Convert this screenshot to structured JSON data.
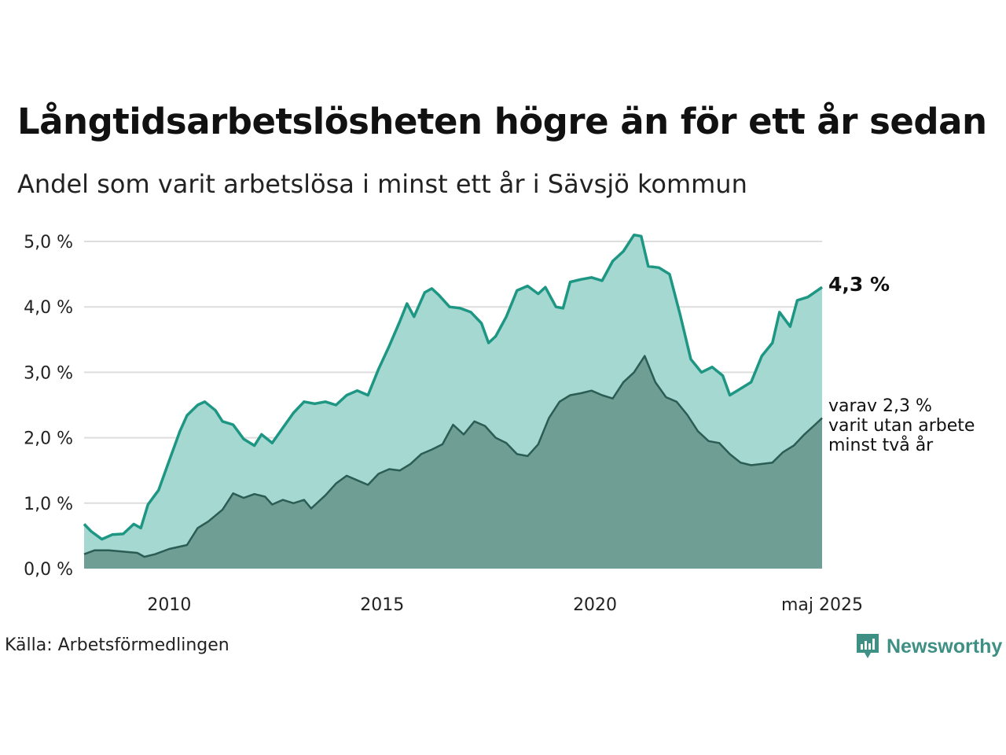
{
  "title": "Långtidsarbetslösheten högre än för ett år sedan",
  "subtitle": "Andel som varit arbetslösa i minst ett år i Sävsjö kommun",
  "source": "Källa: Arbetsförmedlingen",
  "brand": "Newsworthy",
  "annotation": {
    "main": "4,3 %",
    "sub": [
      "varav 2,3 %",
      "varit utan arbete",
      "minst två år"
    ]
  },
  "colors": {
    "upper_line": "#1d9683",
    "upper_fill": "#a5d8d1",
    "lower_line": "#2b5d55",
    "lower_fill": "#6f9e95",
    "grid": "#dddddd",
    "brand": "#3e8f84"
  },
  "chart_data": {
    "type": "area",
    "x_range": [
      "2008-01",
      "2025-05"
    ],
    "ylim": [
      0,
      5
    ],
    "y_ticks": [
      "0,0 %",
      "1,0 %",
      "2,0 %",
      "3,0 %",
      "4,0 %",
      "5,0 %"
    ],
    "x_ticks": [
      "2010",
      "2015",
      "2020",
      "maj 2025"
    ],
    "grid": true,
    "series": [
      {
        "points": [
          [
            "2008-01",
            0.68
          ],
          [
            "2008-03",
            0.57
          ],
          [
            "2008-06",
            0.45
          ],
          [
            "2008-09",
            0.52
          ],
          [
            "2008-12",
            0.53
          ],
          [
            "2009-03",
            0.68
          ],
          [
            "2009-05",
            0.62
          ],
          [
            "2009-07",
            0.98
          ],
          [
            "2009-10",
            1.2
          ],
          [
            "2010-01",
            1.65
          ],
          [
            "2010-04",
            2.1
          ],
          [
            "2010-06",
            2.34
          ],
          [
            "2010-09",
            2.5
          ],
          [
            "2010-11",
            2.55
          ],
          [
            "2011-02",
            2.42
          ],
          [
            "2011-04",
            2.25
          ],
          [
            "2011-07",
            2.2
          ],
          [
            "2011-10",
            1.98
          ],
          [
            "2012-01",
            1.88
          ],
          [
            "2012-03",
            2.05
          ],
          [
            "2012-06",
            1.92
          ],
          [
            "2012-09",
            2.15
          ],
          [
            "2012-12",
            2.38
          ],
          [
            "2013-03",
            2.55
          ],
          [
            "2013-06",
            2.52
          ],
          [
            "2013-09",
            2.55
          ],
          [
            "2013-12",
            2.5
          ],
          [
            "2014-03",
            2.65
          ],
          [
            "2014-06",
            2.72
          ],
          [
            "2014-09",
            2.65
          ],
          [
            "2014-12",
            3.05
          ],
          [
            "2015-03",
            3.4
          ],
          [
            "2015-06",
            3.78
          ],
          [
            "2015-08",
            4.05
          ],
          [
            "2015-10",
            3.85
          ],
          [
            "2016-01",
            4.22
          ],
          [
            "2016-03",
            4.28
          ],
          [
            "2016-05",
            4.18
          ],
          [
            "2016-08",
            4.0
          ],
          [
            "2016-11",
            3.98
          ],
          [
            "2017-02",
            3.92
          ],
          [
            "2017-05",
            3.75
          ],
          [
            "2017-07",
            3.45
          ],
          [
            "2017-09",
            3.55
          ],
          [
            "2017-12",
            3.85
          ],
          [
            "2018-03",
            4.25
          ],
          [
            "2018-06",
            4.32
          ],
          [
            "2018-09",
            4.2
          ],
          [
            "2018-11",
            4.3
          ],
          [
            "2019-02",
            4.0
          ],
          [
            "2019-04",
            3.98
          ],
          [
            "2019-06",
            4.38
          ],
          [
            "2019-09",
            4.42
          ],
          [
            "2019-12",
            4.45
          ],
          [
            "2020-03",
            4.4
          ],
          [
            "2020-06",
            4.7
          ],
          [
            "2020-09",
            4.85
          ],
          [
            "2020-12",
            5.1
          ],
          [
            "2021-02",
            5.08
          ],
          [
            "2021-04",
            4.62
          ],
          [
            "2021-07",
            4.6
          ],
          [
            "2021-10",
            4.5
          ],
          [
            "2022-01",
            3.88
          ],
          [
            "2022-04",
            3.2
          ],
          [
            "2022-07",
            3.0
          ],
          [
            "2022-10",
            3.08
          ],
          [
            "2023-01",
            2.95
          ],
          [
            "2023-03",
            2.65
          ],
          [
            "2023-06",
            2.75
          ],
          [
            "2023-09",
            2.85
          ],
          [
            "2023-12",
            3.25
          ],
          [
            "2024-03",
            3.45
          ],
          [
            "2024-05",
            3.92
          ],
          [
            "2024-08",
            3.7
          ],
          [
            "2024-10",
            4.1
          ],
          [
            "2025-01",
            4.15
          ],
          [
            "2025-05",
            4.3
          ]
        ]
      },
      {
        "points": [
          [
            "2008-01",
            0.22
          ],
          [
            "2008-04",
            0.28
          ],
          [
            "2008-08",
            0.28
          ],
          [
            "2008-12",
            0.26
          ],
          [
            "2009-04",
            0.24
          ],
          [
            "2009-06",
            0.18
          ],
          [
            "2009-09",
            0.22
          ],
          [
            "2010-01",
            0.3
          ],
          [
            "2010-06",
            0.36
          ],
          [
            "2010-09",
            0.62
          ],
          [
            "2010-12",
            0.72
          ],
          [
            "2011-04",
            0.9
          ],
          [
            "2011-07",
            1.15
          ],
          [
            "2011-10",
            1.08
          ],
          [
            "2012-01",
            1.14
          ],
          [
            "2012-04",
            1.1
          ],
          [
            "2012-06",
            0.98
          ],
          [
            "2012-09",
            1.05
          ],
          [
            "2012-12",
            1.0
          ],
          [
            "2013-03",
            1.05
          ],
          [
            "2013-05",
            0.92
          ],
          [
            "2013-09",
            1.12
          ],
          [
            "2013-12",
            1.3
          ],
          [
            "2014-03",
            1.42
          ],
          [
            "2014-06",
            1.35
          ],
          [
            "2014-09",
            1.28
          ],
          [
            "2014-12",
            1.45
          ],
          [
            "2015-03",
            1.52
          ],
          [
            "2015-06",
            1.5
          ],
          [
            "2015-09",
            1.6
          ],
          [
            "2015-12",
            1.75
          ],
          [
            "2016-03",
            1.82
          ],
          [
            "2016-06",
            1.9
          ],
          [
            "2016-09",
            2.2
          ],
          [
            "2016-12",
            2.05
          ],
          [
            "2017-03",
            2.25
          ],
          [
            "2017-06",
            2.18
          ],
          [
            "2017-09",
            2.0
          ],
          [
            "2017-12",
            1.92
          ],
          [
            "2018-03",
            1.75
          ],
          [
            "2018-06",
            1.72
          ],
          [
            "2018-09",
            1.9
          ],
          [
            "2018-12",
            2.3
          ],
          [
            "2019-03",
            2.55
          ],
          [
            "2019-06",
            2.65
          ],
          [
            "2019-09",
            2.68
          ],
          [
            "2019-12",
            2.72
          ],
          [
            "2020-03",
            2.65
          ],
          [
            "2020-06",
            2.6
          ],
          [
            "2020-09",
            2.85
          ],
          [
            "2020-12",
            3.0
          ],
          [
            "2021-03",
            3.25
          ],
          [
            "2021-06",
            2.85
          ],
          [
            "2021-09",
            2.62
          ],
          [
            "2021-12",
            2.55
          ],
          [
            "2022-03",
            2.35
          ],
          [
            "2022-06",
            2.1
          ],
          [
            "2022-09",
            1.95
          ],
          [
            "2022-12",
            1.92
          ],
          [
            "2023-03",
            1.75
          ],
          [
            "2023-06",
            1.62
          ],
          [
            "2023-09",
            1.58
          ],
          [
            "2023-12",
            1.6
          ],
          [
            "2024-03",
            1.62
          ],
          [
            "2024-06",
            1.78
          ],
          [
            "2024-09",
            1.88
          ],
          [
            "2024-12",
            2.05
          ],
          [
            "2025-03",
            2.2
          ],
          [
            "2025-05",
            2.3
          ]
        ]
      }
    ]
  }
}
